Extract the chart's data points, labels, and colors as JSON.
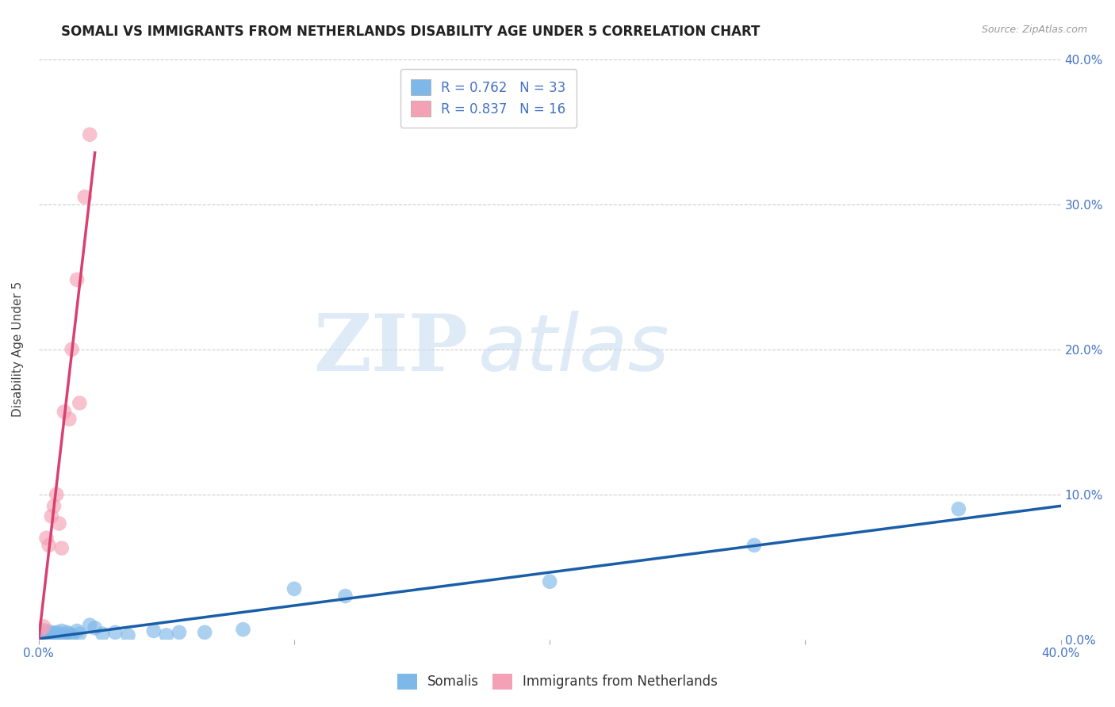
{
  "title": "SOMALI VS IMMIGRANTS FROM NETHERLANDS DISABILITY AGE UNDER 5 CORRELATION CHART",
  "source": "Source: ZipAtlas.com",
  "ylabel": "Disability Age Under 5",
  "watermark_zip": "ZIP",
  "watermark_atlas": "atlas",
  "xlim": [
    0,
    0.4
  ],
  "ylim": [
    0,
    0.4
  ],
  "yticks": [
    0.0,
    0.1,
    0.2,
    0.3,
    0.4
  ],
  "ytick_labels_right": [
    "0.0%",
    "10.0%",
    "20.0%",
    "30.0%",
    "40.0%"
  ],
  "xtick_labels_ends": [
    "0.0%",
    "40.0%"
  ],
  "somali_color": "#7EB8E8",
  "netherlands_color": "#F4A0B5",
  "somali_line_color": "#1A5EA8",
  "netherlands_line_color": "#D94070",
  "somali_R": 0.762,
  "somali_N": 33,
  "netherlands_R": 0.837,
  "netherlands_N": 16,
  "legend_label_somali": "Somalis",
  "legend_label_netherlands": "Immigrants from Netherlands",
  "somali_x": [
    0.001,
    0.002,
    0.003,
    0.003,
    0.004,
    0.005,
    0.005,
    0.006,
    0.007,
    0.007,
    0.008,
    0.009,
    0.01,
    0.011,
    0.012,
    0.013,
    0.015,
    0.016,
    0.02,
    0.022,
    0.025,
    0.03,
    0.035,
    0.045,
    0.05,
    0.055,
    0.065,
    0.08,
    0.1,
    0.12,
    0.2,
    0.28,
    0.36
  ],
  "somali_y": [
    0.005,
    0.003,
    0.004,
    0.006,
    0.003,
    0.005,
    0.002,
    0.004,
    0.005,
    0.003,
    0.004,
    0.006,
    0.003,
    0.005,
    0.004,
    0.003,
    0.006,
    0.004,
    0.01,
    0.008,
    0.004,
    0.005,
    0.003,
    0.006,
    0.003,
    0.005,
    0.005,
    0.007,
    0.035,
    0.03,
    0.04,
    0.065,
    0.09
  ],
  "netherlands_x": [
    0.001,
    0.002,
    0.003,
    0.004,
    0.005,
    0.006,
    0.007,
    0.008,
    0.009,
    0.01,
    0.012,
    0.013,
    0.015,
    0.016,
    0.018,
    0.02
  ],
  "netherlands_y": [
    0.007,
    0.009,
    0.07,
    0.065,
    0.085,
    0.092,
    0.1,
    0.08,
    0.063,
    0.157,
    0.152,
    0.2,
    0.248,
    0.163,
    0.305,
    0.348
  ],
  "background_color": "#FFFFFF",
  "grid_color": "#CCCCCC",
  "title_fontsize": 12,
  "axis_label_fontsize": 11,
  "tick_fontsize": 11,
  "legend_fontsize": 12
}
